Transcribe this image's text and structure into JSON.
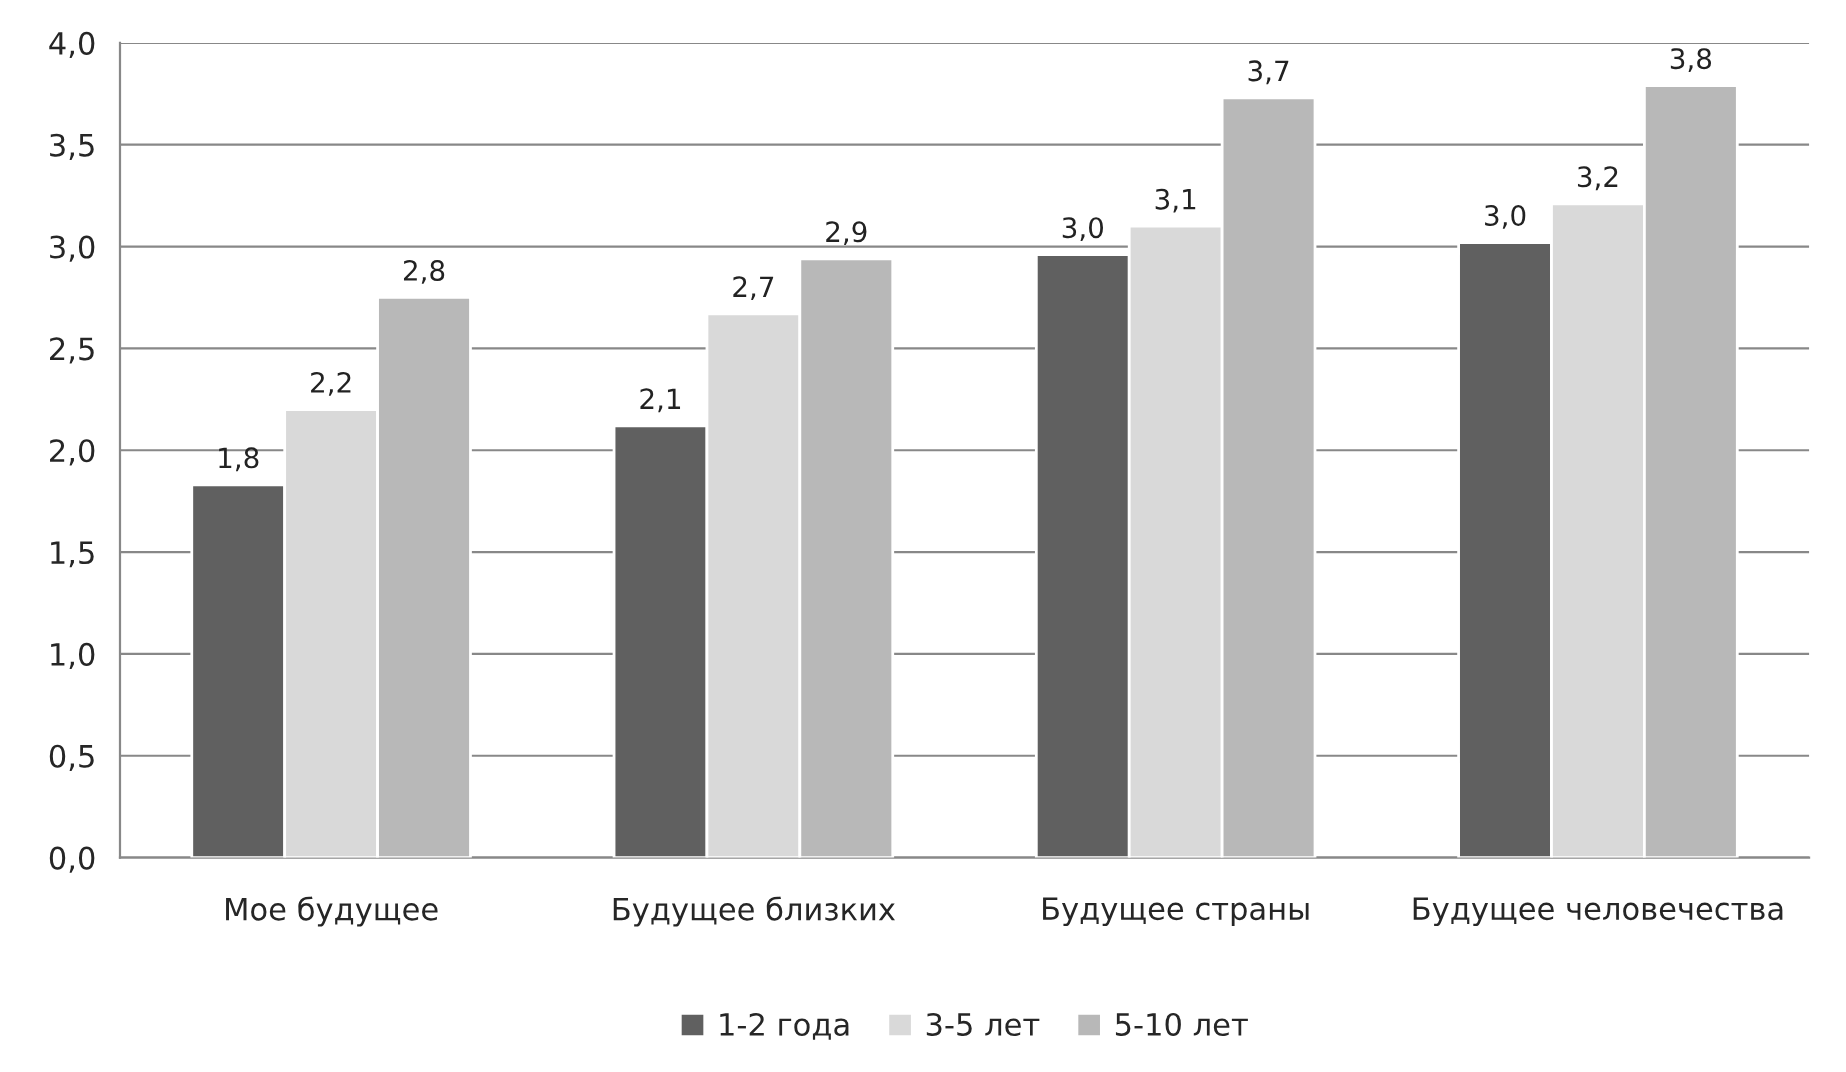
{
  "chart_data": {
    "type": "bar",
    "categories": [
      "Мое будущее",
      "Будущее близких",
      "Будущее страны",
      "Будущее человечества"
    ],
    "series": [
      {
        "name": "1-2 года",
        "color": "#606060",
        "values": [
          1.83,
          2.12,
          2.96,
          3.02
        ],
        "value_labels": [
          "1,8",
          "2,1",
          "3,0",
          "3,0"
        ]
      },
      {
        "name": "3-5 лет",
        "color": "#d9d9d9",
        "values": [
          2.2,
          2.67,
          3.1,
          3.21
        ],
        "value_labels": [
          "2,2",
          "2,7",
          "3,1",
          "3,2"
        ]
      },
      {
        "name": "5-10 лет",
        "color": "#b8b8b8",
        "values": [
          2.75,
          2.94,
          3.73,
          3.79
        ],
        "value_labels": [
          "2,8",
          "2,9",
          "3,7",
          "3,8"
        ]
      }
    ],
    "ylim": [
      0,
      4
    ],
    "yticks": [
      {
        "value": 0,
        "label": "0,0"
      },
      {
        "value": 0.5,
        "label": "0,5"
      },
      {
        "value": 1,
        "label": "1,0"
      },
      {
        "value": 1.5,
        "label": "1,5"
      },
      {
        "value": 2,
        "label": "2,0"
      },
      {
        "value": 2.5,
        "label": "2,5"
      },
      {
        "value": 3,
        "label": "3,0"
      },
      {
        "value": 3.5,
        "label": "3,5"
      },
      {
        "value": 4,
        "label": "4,0"
      }
    ],
    "grid": "y",
    "legend": "bottom"
  }
}
